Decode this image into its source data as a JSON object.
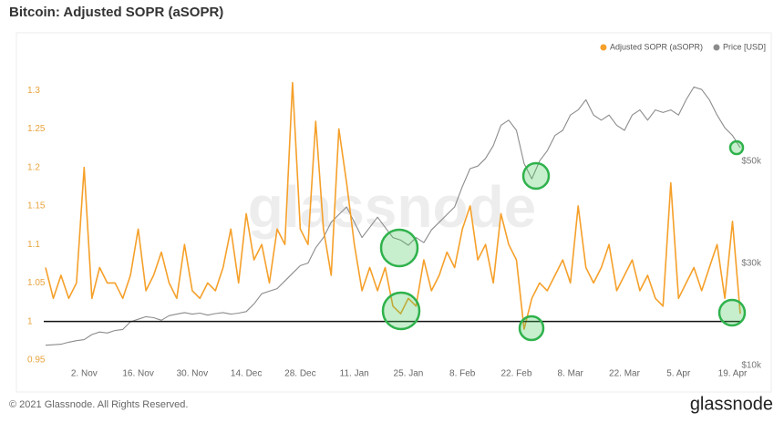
{
  "chart_data": {
    "type": "line",
    "title": "Bitcoin: Adjusted SOPR (aSOPR)",
    "categories": [
      null,
      null,
      null,
      null,
      null,
      "2. Nov",
      null,
      null,
      null,
      null,
      null,
      null,
      "16. Nov",
      null,
      null,
      null,
      null,
      null,
      null,
      "30. Nov",
      null,
      null,
      null,
      null,
      null,
      null,
      "14. Dec",
      null,
      null,
      null,
      null,
      null,
      null,
      "28. Dec",
      null,
      null,
      null,
      null,
      null,
      null,
      "11. Jan",
      null,
      null,
      null,
      null,
      null,
      null,
      "25. Jan",
      null,
      null,
      null,
      null,
      null,
      null,
      "8. Feb",
      null,
      null,
      null,
      null,
      null,
      null,
      "22. Feb",
      null,
      null,
      null,
      null,
      null,
      null,
      "8. Mar",
      null,
      null,
      null,
      null,
      null,
      null,
      "22. Mar",
      null,
      null,
      null,
      null,
      null,
      null,
      "5. Apr",
      null,
      null,
      null,
      null,
      null,
      null,
      "19. Apr",
      null
    ],
    "series": [
      {
        "name": "Adjusted SOPR (aSOPR)",
        "color": "#f5a02a",
        "values": [
          1.07,
          1.03,
          1.06,
          1.03,
          1.05,
          1.2,
          1.03,
          1.07,
          1.05,
          1.05,
          1.03,
          1.06,
          1.12,
          1.04,
          1.06,
          1.09,
          1.05,
          1.03,
          1.1,
          1.04,
          1.03,
          1.05,
          1.04,
          1.07,
          1.12,
          1.05,
          1.14,
          1.08,
          1.1,
          1.05,
          1.12,
          1.1,
          1.31,
          1.12,
          1.1,
          1.26,
          1.12,
          1.06,
          1.25,
          1.18,
          1.1,
          1.04,
          1.07,
          1.04,
          1.07,
          1.02,
          1.01,
          1.03,
          1.02,
          1.08,
          1.04,
          1.06,
          1.09,
          1.07,
          1.12,
          1.15,
          1.08,
          1.1,
          1.05,
          1.14,
          1.1,
          1.08,
          0.99,
          1.03,
          1.05,
          1.04,
          1.06,
          1.08,
          1.05,
          1.15,
          1.07,
          1.05,
          1.07,
          1.1,
          1.04,
          1.06,
          1.08,
          1.04,
          1.06,
          1.03,
          1.02,
          1.18,
          1.03,
          1.05,
          1.07,
          1.04,
          1.07,
          1.1,
          1.03,
          1.13,
          1.01
        ]
      },
      {
        "name": "Price [USD]",
        "color": "#8c8c8c",
        "axis": "y2",
        "values": [
          12900,
          13000,
          13100,
          13500,
          13800,
          14000,
          15000,
          15500,
          15300,
          15800,
          16000,
          17500,
          18000,
          18500,
          18300,
          17800,
          18700,
          19000,
          19300,
          19000,
          19200,
          18800,
          19100,
          19300,
          19000,
          19200,
          19500,
          21000,
          23000,
          23500,
          24000,
          25500,
          27000,
          28500,
          29000,
          32000,
          34000,
          37000,
          38500,
          40000,
          37000,
          34000,
          36000,
          38000,
          36000,
          34000,
          33500,
          32500,
          34000,
          33000,
          35500,
          37000,
          38500,
          40000,
          44000,
          47500,
          48000,
          49500,
          52000,
          56000,
          57000,
          55000,
          48500,
          45500,
          49000,
          51000,
          54000,
          55000,
          58000,
          59000,
          61000,
          58000,
          57000,
          58000,
          56000,
          55000,
          58000,
          59000,
          57000,
          59000,
          58500,
          59000,
          58000,
          61000,
          63500,
          63000,
          61000,
          58000,
          55500,
          54000,
          51600
        ]
      }
    ],
    "ylim": [
      0.944,
      1.37
    ],
    "yticks": [
      0.95,
      1,
      1.05,
      1.1,
      1.15,
      1.2,
      1.25,
      1.3
    ],
    "y2lim": [
      9100,
      73400
    ],
    "y2ticks": [
      {
        "value": 10000,
        "label": "$10k"
      },
      {
        "value": 30000,
        "label": "$30k"
      },
      {
        "value": 50000,
        "label": "$50k"
      }
    ],
    "reference_line": 1,
    "legend": "top-right",
    "grid": false
  },
  "watermark": "glassnode",
  "footer": {
    "copyright": "© 2021 Glassnode. All Rights Reserved.",
    "logo": "glassnode"
  }
}
